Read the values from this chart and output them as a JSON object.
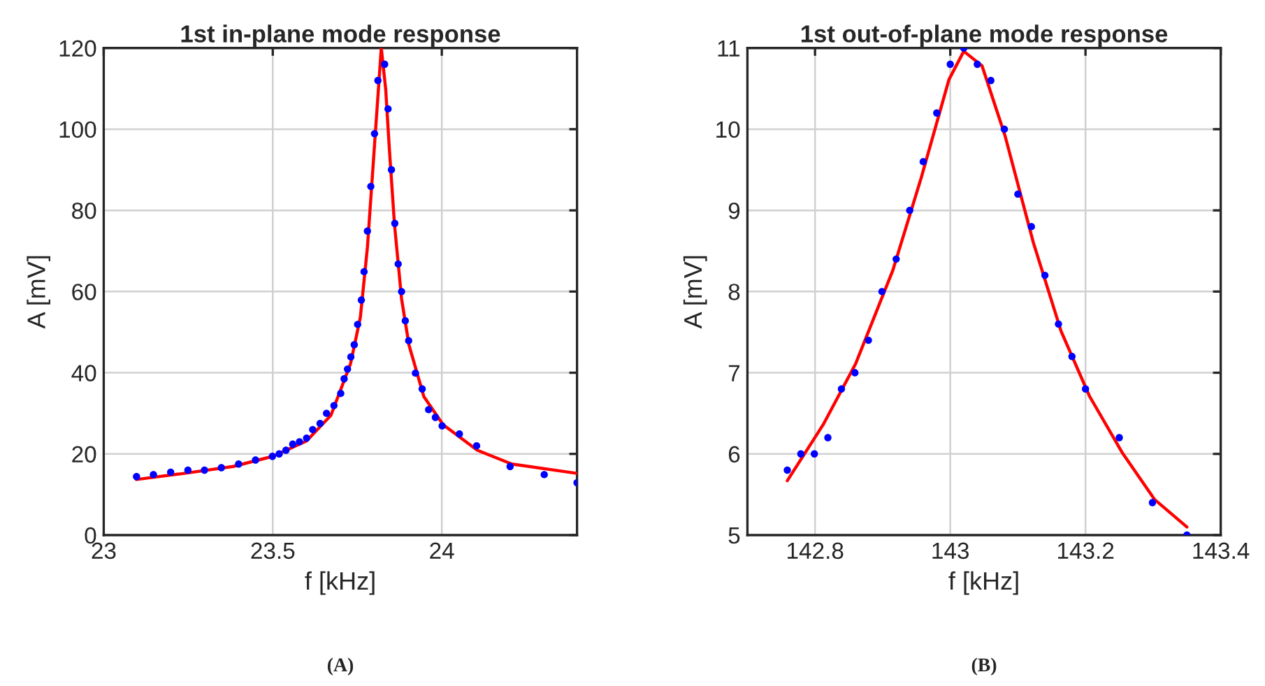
{
  "chart_data": [
    {
      "type": "scatter",
      "title": "1st in-plane mode response",
      "xlabel": "f [kHz]",
      "ylabel": "A [mV]",
      "xlim": [
        23,
        24.4
      ],
      "xticks": [
        23,
        23.5,
        24
      ],
      "ylim": [
        0,
        120
      ],
      "yticks": [
        0,
        20,
        40,
        60,
        80,
        100,
        120
      ],
      "grid": true,
      "marker": "circle",
      "annotations": [
        "(A)"
      ],
      "series": [
        {
          "type": "scatter",
          "color": "#0000ff",
          "x": [
            23.097,
            23.147,
            23.198,
            23.249,
            23.298,
            23.348,
            23.399,
            23.449,
            23.499,
            23.519,
            23.539,
            23.559,
            23.579,
            23.6,
            23.618,
            23.64,
            23.659,
            23.681,
            23.701,
            23.711,
            23.721,
            23.731,
            23.741,
            23.751,
            23.762,
            23.77,
            23.78,
            23.79,
            23.801,
            23.811,
            23.831,
            23.841,
            23.851,
            23.861,
            23.871,
            23.881,
            23.892,
            23.902,
            23.922,
            23.942,
            23.961,
            23.981,
            24.001,
            24.052,
            24.103,
            24.202,
            24.303,
            24.4
          ],
          "values": [
            14.4,
            14.9,
            15.5,
            16.0,
            16.0,
            16.6,
            17.5,
            18.5,
            19.4,
            20.0,
            20.9,
            22.4,
            23.0,
            23.9,
            26.0,
            27.5,
            30.0,
            31.9,
            34.9,
            38.5,
            40.9,
            43.9,
            46.9,
            51.9,
            57.9,
            64.9,
            74.9,
            85.9,
            98.9,
            112.0,
            116.0,
            105.0,
            90.0,
            76.8,
            66.8,
            60.0,
            52.8,
            47.9,
            39.9,
            36.0,
            30.9,
            29.0,
            26.9,
            24.9,
            22.0,
            16.9,
            14.9,
            12.9
          ]
        },
        {
          "type": "line",
          "color": "#ff0000",
          "marker": "none",
          "line_style": "solid",
          "x": [
            23.097,
            23.238,
            23.383,
            23.5,
            23.6,
            23.672,
            23.73,
            23.759,
            23.78,
            23.802,
            23.821,
            23.834,
            23.845,
            23.86,
            23.881,
            23.903,
            23.947,
            24.004,
            24.105,
            24.207,
            24.4
          ],
          "values": [
            13.7,
            15.2,
            16.9,
            19.4,
            23.2,
            29.5,
            42.2,
            53.6,
            70.9,
            97.3,
            120,
            109.9,
            95,
            76.6,
            58.2,
            46.8,
            34.1,
            27.2,
            20.9,
            17.5,
            15.2
          ]
        }
      ]
    },
    {
      "type": "scatter",
      "title": "1st out-of-plane mode response",
      "xlabel": "f [kHz]",
      "ylabel": "A [mV]",
      "xlim": [
        142.7,
        143.4
      ],
      "xticks": [
        142.8,
        143,
        143.2,
        143.4
      ],
      "ylim": [
        5,
        11
      ],
      "yticks": [
        5,
        6,
        7,
        8,
        9,
        10,
        11
      ],
      "grid": true,
      "marker": "circle",
      "annotations": [
        "(B)"
      ],
      "series": [
        {
          "type": "scatter",
          "color": "#0000ff",
          "x": [
            142.759,
            142.779,
            142.799,
            142.819,
            142.839,
            142.859,
            142.879,
            142.899,
            142.92,
            142.94,
            142.96,
            142.98,
            143.0,
            143.02,
            143.04,
            143.06,
            143.08,
            143.1,
            143.12,
            143.14,
            143.16,
            143.18,
            143.2,
            143.25,
            143.299,
            143.35
          ],
          "values": [
            5.8,
            6.0,
            6.0,
            6.2,
            6.8,
            7.0,
            7.4,
            8.0,
            8.4,
            9.0,
            9.6,
            10.2,
            10.8,
            11.0,
            10.8,
            10.6,
            10.0,
            9.2,
            8.8,
            8.2,
            7.6,
            7.2,
            6.8,
            6.2,
            5.4,
            5.0
          ]
        },
        {
          "type": "line",
          "color": "#ff0000",
          "marker": "none",
          "line_style": "solid",
          "x": [
            142.759,
            142.812,
            142.86,
            142.915,
            142.957,
            142.998,
            143.02,
            143.047,
            143.081,
            143.123,
            143.164,
            143.206,
            143.254,
            143.302,
            143.35
          ],
          "values": [
            5.67,
            6.36,
            7.11,
            8.26,
            9.4,
            10.61,
            10.96,
            10.78,
            9.92,
            8.6,
            7.51,
            6.71,
            6.02,
            5.44,
            5.1
          ]
        }
      ]
    }
  ]
}
